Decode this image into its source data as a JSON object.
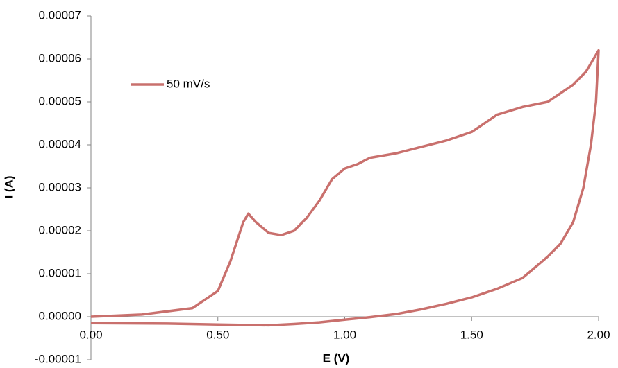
{
  "chart_data": {
    "type": "line",
    "x_label": "E (V)",
    "y_label": "I (A)",
    "x": [
      0,
      0.2,
      0.4,
      0.5,
      0.55,
      0.6,
      0.62,
      0.65,
      0.7,
      0.75,
      0.8,
      0.85,
      0.9,
      0.95,
      1.0,
      1.05,
      1.1,
      1.2,
      1.3,
      1.4,
      1.5,
      1.6,
      1.7,
      1.8,
      1.9,
      1.95,
      2.0,
      1.99,
      1.97,
      1.94,
      1.9,
      1.85,
      1.8,
      1.7,
      1.6,
      1.5,
      1.4,
      1.3,
      1.2,
      1.1,
      1.0,
      0.9,
      0.8,
      0.7,
      0.5,
      0.3,
      0
    ],
    "series": [
      {
        "name": "50 mV/s",
        "color": "#c9706d",
        "values": [
          0,
          5e-07,
          2e-06,
          6e-06,
          1.3e-05,
          2.2e-05,
          2.4e-05,
          2.2e-05,
          1.95e-05,
          1.9e-05,
          2e-05,
          2.3e-05,
          2.7e-05,
          3.2e-05,
          3.45e-05,
          3.55e-05,
          3.7e-05,
          3.8e-05,
          3.95e-05,
          4.1e-05,
          4.3e-05,
          4.7e-05,
          4.88e-05,
          5e-05,
          5.4e-05,
          5.7e-05,
          6.2e-05,
          5e-05,
          4e-05,
          3e-05,
          2.2e-05,
          1.7e-05,
          1.4e-05,
          9e-06,
          6.5e-06,
          4.5e-06,
          3e-06,
          1.7e-06,
          6e-07,
          -1e-07,
          -7e-07,
          -1.3e-06,
          -1.7e-06,
          -2e-06,
          -1.8e-06,
          -1.6e-06,
          -1.5e-06
        ]
      }
    ],
    "xlim": [
      0,
      2
    ],
    "xticks": [
      {
        "value": 0,
        "label": "0.00"
      },
      {
        "value": 0.5,
        "label": "0.50"
      },
      {
        "value": 1,
        "label": "1.00"
      },
      {
        "value": 1.5,
        "label": "1.50"
      },
      {
        "value": 2,
        "label": "2.00"
      }
    ],
    "ylim": [
      -1e-05,
      7e-05
    ],
    "yticks": [
      -1e-05,
      {
        "value": 0,
        "label": "0.00000"
      },
      1e-05,
      2e-05,
      3e-05,
      4e-05,
      5e-05,
      6e-05,
      7e-05
    ]
  }
}
